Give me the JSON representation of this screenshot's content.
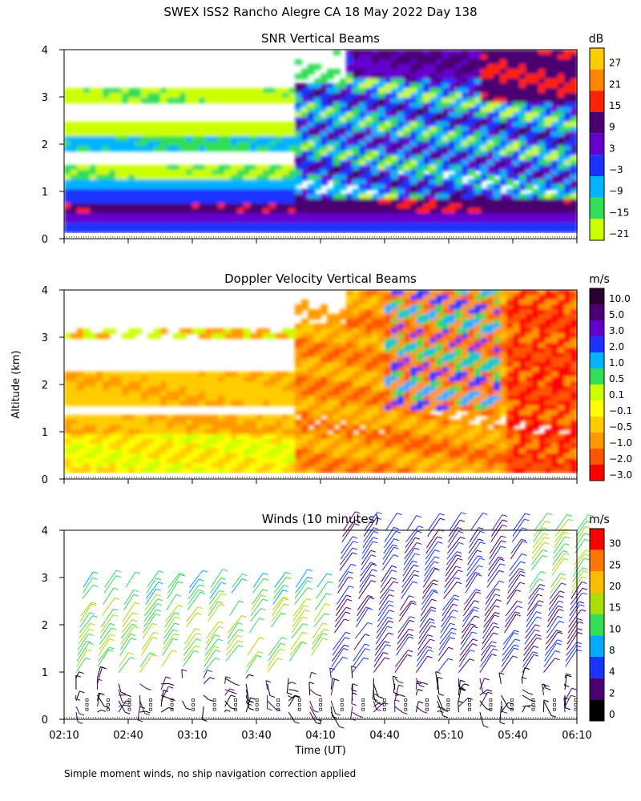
{
  "title": "SWEX ISS2 Rancho Alegre CA  18 May 2022 Day 138",
  "ylabel": "Altitude (km)",
  "xlabel": "Time (UT)",
  "x_ticks": [
    "02:10",
    "02:40",
    "03:10",
    "03:40",
    "04:10",
    "04:40",
    "05:10",
    "05:40",
    "06:10"
  ],
  "y_ticks": [
    "0",
    "1",
    "2",
    "3",
    "4"
  ],
  "footnote": "Simple moment winds, no ship navigation correction applied",
  "chart_data": [
    {
      "type": "heatmap",
      "title": "SNR Vertical Beams",
      "unit": "dB",
      "xlim": [
        "02:10",
        "06:10"
      ],
      "ylim": [
        0,
        4
      ],
      "colorbar": {
        "labels": [
          "27",
          "21",
          "15",
          "9",
          "3",
          "−3",
          "−9",
          "−15",
          "−21"
        ],
        "colors": [
          "#ffcc00",
          "#ff8800",
          "#ff2200",
          "#4a0070",
          "#6600cc",
          "#1a33ff",
          "#00b3ff",
          "#33dd55",
          "#ccff00"
        ]
      }
    },
    {
      "type": "heatmap",
      "title": "Doppler Velocity Vertical Beams",
      "unit": "m/s",
      "xlim": [
        "02:10",
        "06:10"
      ],
      "ylim": [
        0,
        4
      ],
      "colorbar": {
        "labels": [
          "10.0",
          "5.0",
          "3.0",
          "2.0",
          "1.0",
          "0.5",
          "0.1",
          "−0.1",
          "−0.5",
          "−1.0",
          "−2.0",
          "−3.0"
        ],
        "colors": [
          "#2a0033",
          "#4a0070",
          "#6600cc",
          "#1a33ff",
          "#00b3ff",
          "#33dd55",
          "#ccff00",
          "#ffff00",
          "#ffcc00",
          "#ff9900",
          "#ff5500",
          "#ff0000"
        ]
      }
    },
    {
      "type": "scatter",
      "title": "Winds (10 minutes)",
      "unit": "m/s",
      "xlim": [
        "02:10",
        "06:10"
      ],
      "ylim": [
        0,
        4
      ],
      "colorbar": {
        "labels": [
          "30",
          "25",
          "20",
          "15",
          "10",
          "8",
          "4",
          "2",
          "0"
        ],
        "colors": [
          "#ff0000",
          "#ff7700",
          "#ffbb00",
          "#aadd00",
          "#33dd55",
          "#00aaff",
          "#1a33ff",
          "#4a0070",
          "#000000"
        ]
      }
    }
  ]
}
